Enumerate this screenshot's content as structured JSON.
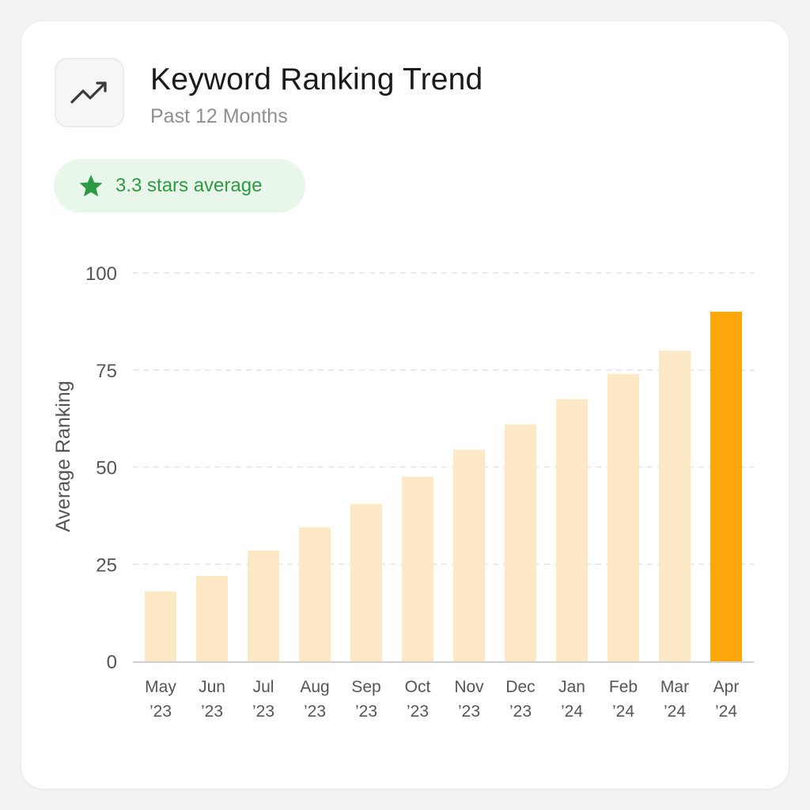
{
  "header": {
    "title": "Keyword Ranking Trend",
    "subtitle": "Past 12 Months",
    "icon": "trending-up-icon"
  },
  "badge": {
    "text": "3.3 stars average",
    "icon": "star-icon",
    "color": "#2e9a44"
  },
  "colors": {
    "bar": "#fde9c6",
    "highlight_bar": "#ffa70a",
    "grid": "#e4e4e4",
    "axis": "#d0d0d0"
  },
  "chart_data": {
    "type": "bar",
    "categories": [
      [
        "May",
        "’23"
      ],
      [
        "Jun",
        "’23"
      ],
      [
        "Jul",
        "’23"
      ],
      [
        "Aug",
        "’23"
      ],
      [
        "Sep",
        "’23"
      ],
      [
        "Oct",
        "’23"
      ],
      [
        "Nov",
        "’23"
      ],
      [
        "Dec",
        "’23"
      ],
      [
        "Jan",
        "’24"
      ],
      [
        "Feb",
        "’24"
      ],
      [
        "Mar",
        "’24"
      ],
      [
        "Apr",
        "’24"
      ]
    ],
    "values": [
      18,
      22,
      28.5,
      34.5,
      40.5,
      47.5,
      54.5,
      61,
      67.5,
      74,
      80,
      90
    ],
    "highlight_index": 11,
    "ylabel": "Average Ranking",
    "ylim": [
      0,
      100
    ],
    "yticks": [
      0,
      25,
      50,
      75,
      100
    ],
    "grid": true,
    "legend": "none"
  }
}
